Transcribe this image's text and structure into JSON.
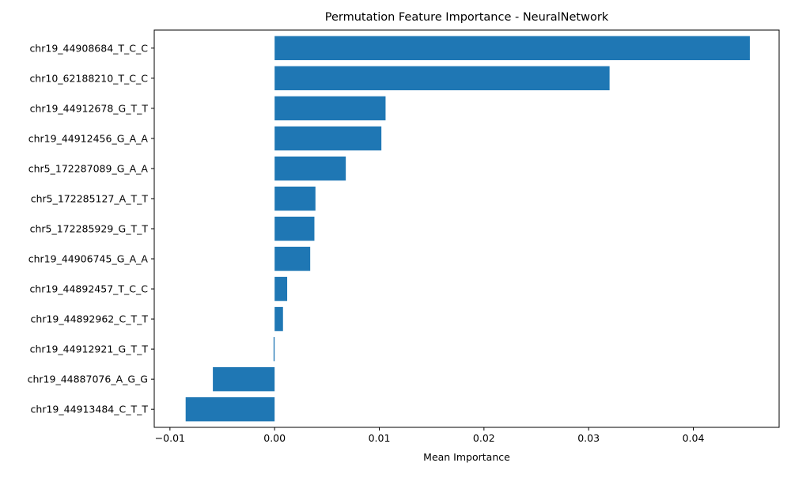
{
  "colors": {
    "bar": "#1f77b4",
    "axis": "#000000",
    "background": "#ffffff"
  },
  "chart_data": {
    "type": "bar",
    "orientation": "horizontal",
    "title": "Permutation Feature Importance - NeuralNetwork",
    "xlabel": "Mean Importance",
    "ylabel": "",
    "xlim": [
      -0.0115,
      0.0482
    ],
    "x_ticks": [
      -0.01,
      0.0,
      0.01,
      0.02,
      0.03,
      0.04
    ],
    "x_tick_labels": [
      "−0.01",
      "0.00",
      "0.01",
      "0.02",
      "0.03",
      "0.04"
    ],
    "grid": false,
    "legend": "none",
    "categories": [
      "chr19_44908684_T_C_C",
      "chr10_62188210_T_C_C",
      "chr19_44912678_G_T_T",
      "chr19_44912456_G_A_A",
      "chr5_172287089_G_A_A",
      "chr5_172285127_A_T_T",
      "chr5_172285929_G_T_T",
      "chr19_44906745_G_A_A",
      "chr19_44892457_T_C_C",
      "chr19_44892962_C_T_T",
      "chr19_44912921_G_T_T",
      "chr19_44887076_A_G_G",
      "chr19_44913484_C_T_T"
    ],
    "values": [
      0.0454,
      0.032,
      0.0106,
      0.0102,
      0.0068,
      0.0039,
      0.0038,
      0.0034,
      0.0012,
      0.0008,
      -0.0001,
      -0.0059,
      -0.0085
    ]
  }
}
